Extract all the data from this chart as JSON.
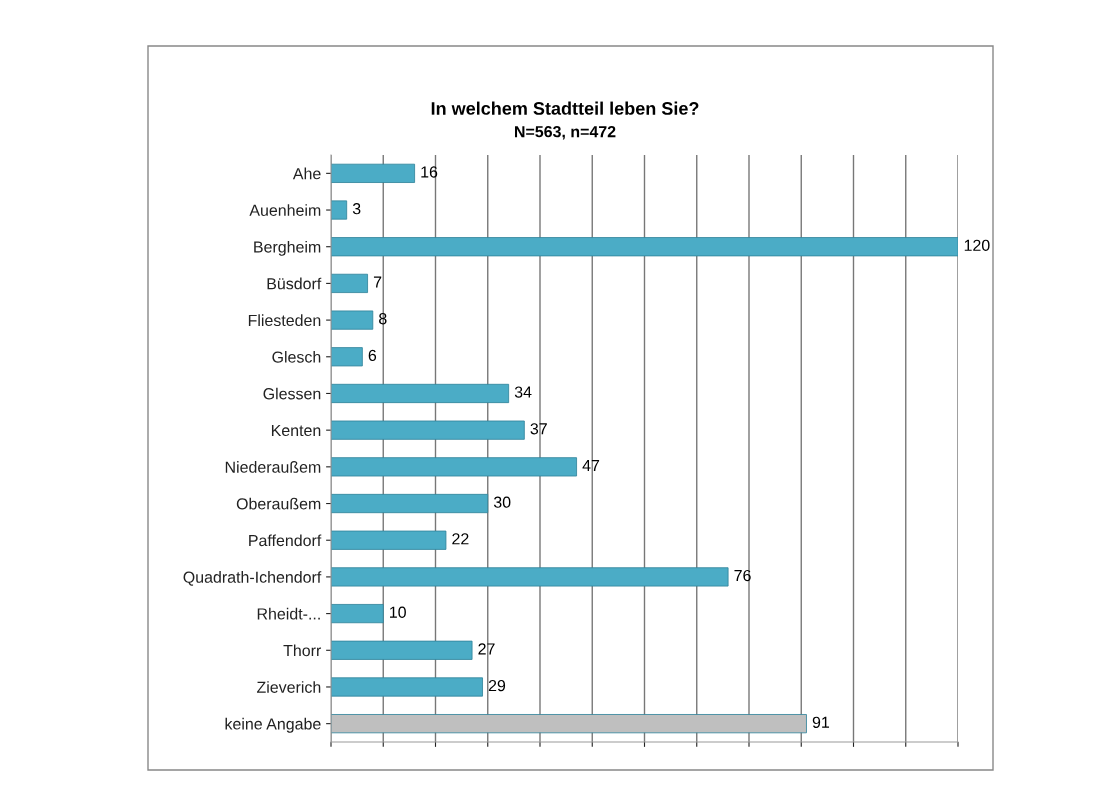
{
  "chart_data": {
    "type": "bar",
    "orientation": "horizontal",
    "title": "In welchem Stadtteil leben Sie?",
    "subtitle": "N=563, n=472",
    "categories": [
      "Ahe",
      "Auenheim",
      "Bergheim",
      "Büsdorf",
      "Fliesteden",
      "Glesch",
      "Glessen",
      "Kenten",
      "Niederaußem",
      "Oberaußem",
      "Paffendorf",
      "Quadrath-Ichendorf",
      "Rheidt-...",
      "Thorr",
      "Zieverich",
      "keine Angabe"
    ],
    "values": [
      16,
      3,
      120,
      7,
      8,
      6,
      34,
      37,
      47,
      30,
      22,
      76,
      10,
      27,
      29,
      91
    ],
    "colors": [
      "#4bacc6",
      "#4bacc6",
      "#4bacc6",
      "#4bacc6",
      "#4bacc6",
      "#4bacc6",
      "#4bacc6",
      "#4bacc6",
      "#4bacc6",
      "#4bacc6",
      "#4bacc6",
      "#4bacc6",
      "#4bacc6",
      "#4bacc6",
      "#4bacc6",
      "#bfbfbf"
    ],
    "xlim": [
      0,
      120
    ],
    "xticks": [
      {
        "value": 0,
        "label": null
      },
      {
        "value": 10,
        "label": null
      },
      {
        "value": 20,
        "label": null
      },
      {
        "value": 30,
        "label": null
      },
      {
        "value": 40,
        "label": null
      },
      {
        "value": 50,
        "label": null
      },
      {
        "value": 60,
        "label": null
      },
      {
        "value": 70,
        "label": null
      },
      {
        "value": 80,
        "label": null
      },
      {
        "value": 90,
        "label": null
      },
      {
        "value": 100,
        "label": null
      },
      {
        "value": 110,
        "label": null
      },
      {
        "value": 120,
        "label": null
      }
    ],
    "grid": "x",
    "tick_labels": "y",
    "data_labels": true
  }
}
